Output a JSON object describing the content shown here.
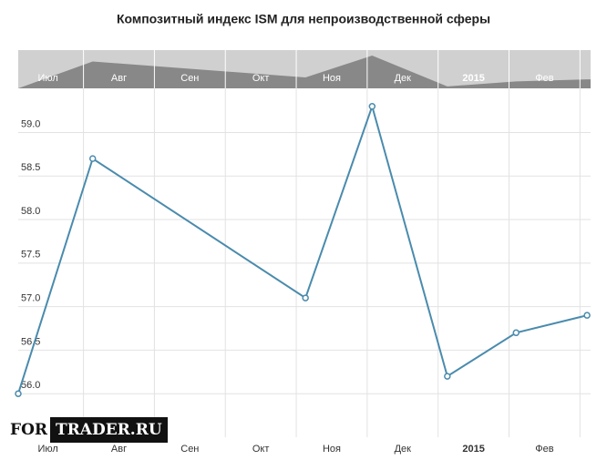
{
  "chart_data": {
    "type": "line",
    "title": "Композитный индекс ISM для непроизводственной сферы",
    "xticks": [
      {
        "value": 0,
        "label": "Июл"
      },
      {
        "value": 1,
        "label": "Авг"
      },
      {
        "value": 2,
        "label": "Сен"
      },
      {
        "value": 3,
        "label": "Окт"
      },
      {
        "value": 4,
        "label": "Ноя"
      },
      {
        "value": 5,
        "label": "Дек"
      },
      {
        "value": 6,
        "label": "2015"
      },
      {
        "value": 7,
        "label": "Фев"
      },
      {
        "value": 8,
        "label": null
      }
    ],
    "xlim": [
      0.08,
      8.15
    ],
    "x": [
      0.08,
      1.13,
      4.13,
      5.07,
      6.13,
      7.1,
      8.1
    ],
    "series": [
      {
        "color": "#4a8bad",
        "values": [
          56.0,
          58.7,
          57.1,
          59.3,
          56.2,
          56.7,
          56.9
        ]
      }
    ],
    "ylim": [
      55.5,
      59.35
    ],
    "yticks": [
      {
        "value": 56,
        "label": "56.0"
      },
      56.5,
      {
        "value": 57,
        "label": "57.0"
      },
      57.5,
      {
        "value": 58,
        "label": "58.0"
      },
      58.5,
      {
        "value": 59,
        "label": "59.0"
      }
    ],
    "grid": true
  },
  "watermark": {
    "left": "FOR",
    "right": "TRADER.RU"
  }
}
